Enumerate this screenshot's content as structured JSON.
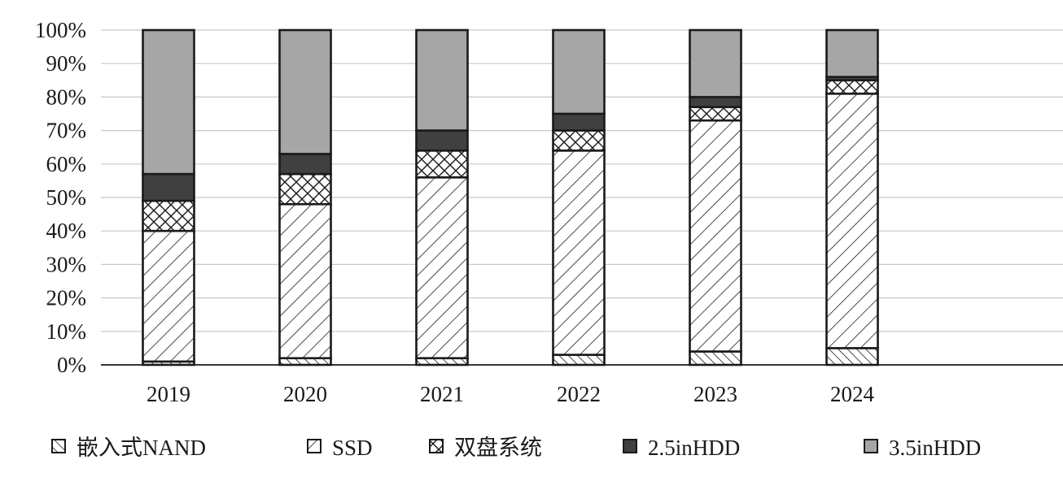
{
  "chart_data": {
    "type": "bar",
    "stacked": true,
    "percent": true,
    "categories": [
      "2019",
      "2020",
      "2021",
      "2022",
      "2023",
      "2024"
    ],
    "series": [
      {
        "name": "嵌入式NAND",
        "pattern": "hatch-ne",
        "color": "#ffffff",
        "values": [
          1,
          2,
          2,
          3,
          4,
          5
        ]
      },
      {
        "name": "SSD",
        "pattern": "hatch-nw",
        "color": "#ffffff",
        "values": [
          39,
          46,
          54,
          61,
          69,
          76
        ]
      },
      {
        "name": "双盘系统",
        "pattern": "crosshatch",
        "color": "#ffffff",
        "values": [
          9,
          9,
          8,
          6,
          4,
          4
        ]
      },
      {
        "name": "2.5inHDD",
        "pattern": "solid",
        "color": "#404040",
        "values": [
          8,
          6,
          6,
          5,
          3,
          1
        ]
      },
      {
        "name": "3.5inHDD",
        "pattern": "solid",
        "color": "#a6a6a6",
        "values": [
          43,
          37,
          30,
          25,
          20,
          14
        ]
      }
    ],
    "ylim": [
      0,
      100
    ],
    "yticks": [
      "0%",
      "10%",
      "20%",
      "30%",
      "40%",
      "50%",
      "60%",
      "70%",
      "80%",
      "90%",
      "100%"
    ],
    "grid": true,
    "legend": "bottom"
  }
}
